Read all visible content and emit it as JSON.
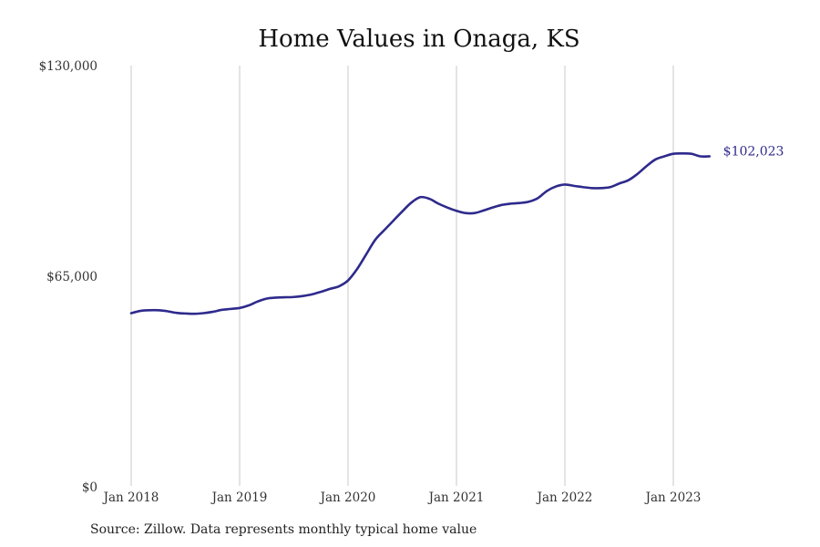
{
  "chart_data": {
    "type": "line",
    "title": "Home Values in Onaga, KS",
    "xlabel": "",
    "ylabel": "",
    "ylim": [
      0,
      130000
    ],
    "y_ticks": [
      0,
      65000,
      130000
    ],
    "y_tick_labels": [
      "$0",
      "$65,000",
      "$130,000"
    ],
    "x_tick_labels": [
      "Jan 2018",
      "Jan 2019",
      "Jan 2020",
      "Jan 2021",
      "Jan 2022",
      "Jan 2023"
    ],
    "x_start": "Jan 2018",
    "x_end": "May 2023",
    "grid": "vertical",
    "series_color": "#2e2a8c",
    "end_label": "$102,023",
    "series": [
      {
        "values": [
          53600,
          54300,
          54500,
          54500,
          54200,
          53700,
          53500,
          53400,
          53600,
          54000,
          54600,
          54900,
          55200,
          56000,
          57200,
          58100,
          58400,
          58500,
          58600,
          58900,
          59400,
          60200,
          61100,
          61900,
          63700,
          67200,
          71700,
          76200,
          79200,
          82100,
          85000,
          87700,
          89400,
          88900,
          87400,
          86200,
          85200,
          84500,
          84500,
          85300,
          86200,
          87000,
          87400,
          87600,
          88000,
          89100,
          91300,
          92700,
          93300,
          92900,
          92500,
          92200,
          92200,
          92500,
          93600,
          94600,
          96500,
          98900,
          101000,
          102000,
          102800,
          102900,
          102800,
          102000,
          102023
        ]
      }
    ]
  },
  "source": "Source: Zillow. Data represents monthly typical home value"
}
